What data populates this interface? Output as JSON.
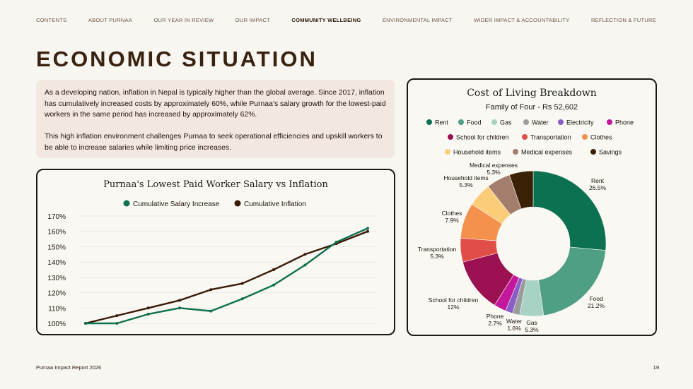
{
  "nav": {
    "items": [
      {
        "label": "CONTENTS",
        "active": false
      },
      {
        "label": "ABOUT PURNAA",
        "active": false
      },
      {
        "label": "OUR YEAR IN REVIEW",
        "active": false
      },
      {
        "label": "OUR IMPACT",
        "active": false
      },
      {
        "label": "COMMUNITY WELLBEING",
        "active": true
      },
      {
        "label": "ENVIRONMENTAL IMPACT",
        "active": false
      },
      {
        "label": "WIDER IMPACT & ACCOUNTABILITY",
        "active": false
      },
      {
        "label": "REFLECTION & FUTURE",
        "active": false
      }
    ]
  },
  "page": {
    "title": "ECONOMIC SITUATION",
    "paragraph1": "As a developing nation, inflation in Nepal is typically higher than the global average. Since 2017, inflation has cumulatively increased costs by approximately 60%, while Purnaa’s salary growth for the lowest-paid workers in the same period has increased by approximately 62%.",
    "paragraph2": "This high inflation environment challenges Purnaa to seek operational efficiencies and upskill workers to be able to increase salaries while limiting price increases."
  },
  "footer": {
    "left": "Purnaa Impact Report 2026",
    "page_number": "19"
  },
  "chart_data": [
    {
      "type": "line",
      "title": "Purnaa's Lowest Paid Worker Salary vs Inflation",
      "x": [
        1,
        2,
        3,
        4,
        5,
        6,
        7,
        8,
        9,
        10
      ],
      "series": [
        {
          "name": "Cumulative Salary Increase",
          "color": "#0e7150",
          "values": [
            100,
            100,
            106,
            110,
            108,
            116,
            125,
            138,
            153,
            162
          ]
        },
        {
          "name": "Cumulative Inflation",
          "color": "#3a1a06",
          "values": [
            100,
            105,
            110,
            115,
            122,
            126,
            135,
            145,
            152,
            160
          ]
        }
      ],
      "yticks": [
        "170%",
        "160%",
        "150%",
        "140%",
        "130%",
        "120%",
        "110%",
        "100%"
      ],
      "ylim": [
        100,
        170
      ],
      "legend": "top",
      "grid": true
    },
    {
      "type": "pie",
      "donut": true,
      "title": "Cost of Living Breakdown",
      "subtitle": "Family of Four - Rs 52,602",
      "legend": "top",
      "slices": [
        {
          "label": "Rent",
          "value": 26.5,
          "pct": "26.5%",
          "color": "#0b7150"
        },
        {
          "label": "Food",
          "value": 21.2,
          "pct": "21.2%",
          "color": "#4f9f84"
        },
        {
          "label": "Gas",
          "value": 5.3,
          "pct": "5.3%",
          "color": "#a8d3c4"
        },
        {
          "label": "Water",
          "value": 1.6,
          "pct": "1.6%",
          "color": "#9b9b9b"
        },
        {
          "label": "Electricity",
          "value": 1.6,
          "pct": "",
          "color": "#8a5cc8"
        },
        {
          "label": "Phone",
          "value": 2.7,
          "pct": "2.7%",
          "color": "#c4189c"
        },
        {
          "label": "School for children",
          "value": 12,
          "pct": "12%",
          "color": "#9c1151"
        },
        {
          "label": "Transportation",
          "value": 5.3,
          "pct": "5.3%",
          "color": "#e04e47"
        },
        {
          "label": "Clothes",
          "value": 7.9,
          "pct": "7.9%",
          "color": "#f4924d"
        },
        {
          "label": "Household items",
          "value": 5.3,
          "pct": "5.3%",
          "color": "#fccd79"
        },
        {
          "label": "Medical expenses",
          "value": 5.3,
          "pct": "5.3%",
          "color": "#a47e6c"
        },
        {
          "label": "Savings",
          "value": 5.3,
          "pct": "",
          "color": "#3b2206"
        }
      ]
    }
  ]
}
